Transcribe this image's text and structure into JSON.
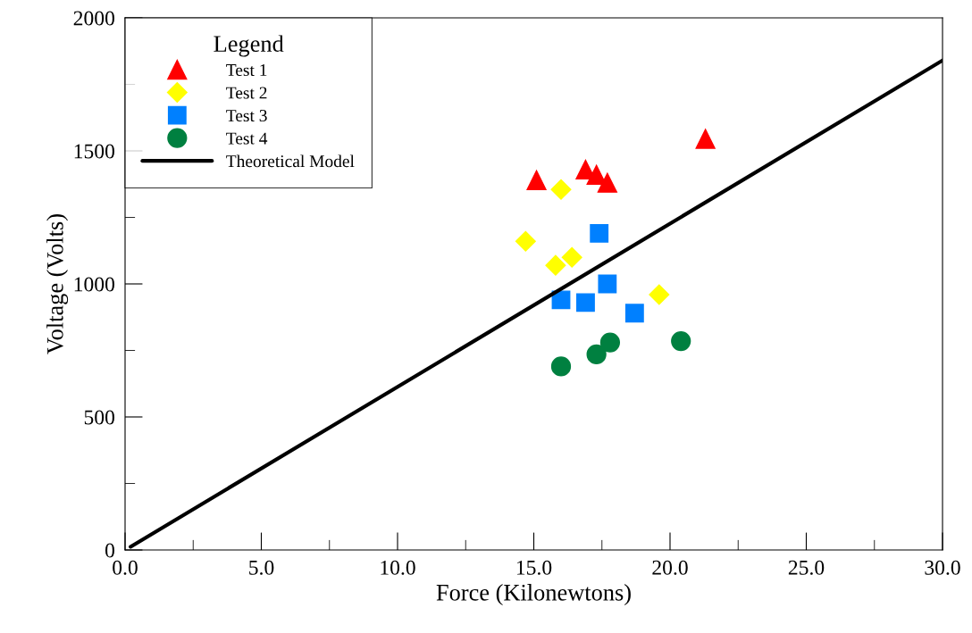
{
  "chart_data": {
    "type": "scatter",
    "xlabel": "Force (Kilonewtons)",
    "ylabel": "Voltage (Volts)",
    "legend_title": "Legend",
    "legend": "top left",
    "grid": false,
    "xlim": [
      0,
      30
    ],
    "ylim": [
      0,
      2000
    ],
    "xticks": [
      {
        "value": 0,
        "label": "0.0"
      },
      {
        "value": 2.5,
        "label": null
      },
      {
        "value": 5,
        "label": "5.0"
      },
      {
        "value": 7.5,
        "label": null
      },
      {
        "value": 10,
        "label": "10.0"
      },
      {
        "value": 12.5,
        "label": null
      },
      {
        "value": 15,
        "label": "15.0"
      },
      {
        "value": 17.5,
        "label": null
      },
      {
        "value": 20,
        "label": "20.0"
      },
      {
        "value": 22.5,
        "label": null
      },
      {
        "value": 25,
        "label": "25.0"
      },
      {
        "value": 27.5,
        "label": null
      },
      {
        "value": 30,
        "label": "30.0"
      }
    ],
    "yticks": [
      0,
      {
        "value": 250,
        "label": null
      },
      500,
      {
        "value": 750,
        "label": null
      },
      1000,
      {
        "value": 1250,
        "label": null
      },
      1500,
      {
        "value": 1750,
        "label": null
      },
      2000
    ],
    "series": [
      {
        "name": "Test 1",
        "marker": "triangle",
        "color": "#ff0000",
        "x": [
          15.1,
          16.9,
          17.3,
          17.7,
          21.3
        ],
        "values": [
          1390,
          1430,
          1410,
          1380,
          1545
        ]
      },
      {
        "name": "Test 2",
        "marker": "diamond",
        "color": "#ffff00",
        "x": [
          14.7,
          16.0,
          15.8,
          16.4,
          19.6
        ],
        "values": [
          1160,
          1355,
          1070,
          1100,
          960
        ]
      },
      {
        "name": "Test 3",
        "marker": "square",
        "color": "#0080ff",
        "x": [
          16.0,
          16.9,
          17.4,
          17.7,
          18.7
        ],
        "values": [
          940,
          930,
          1190,
          1000,
          890
        ]
      },
      {
        "name": "Test 4",
        "marker": "circle",
        "color": "#008040",
        "x": [
          16.0,
          17.3,
          17.8,
          20.4
        ],
        "values": [
          690,
          735,
          780,
          785
        ]
      },
      {
        "name": "Theoretical Model",
        "type": "line",
        "marker": "none",
        "line_style": "solid",
        "color": "#000000",
        "x": [
          0.2,
          30
        ],
        "values": [
          12,
          1840
        ]
      }
    ]
  }
}
